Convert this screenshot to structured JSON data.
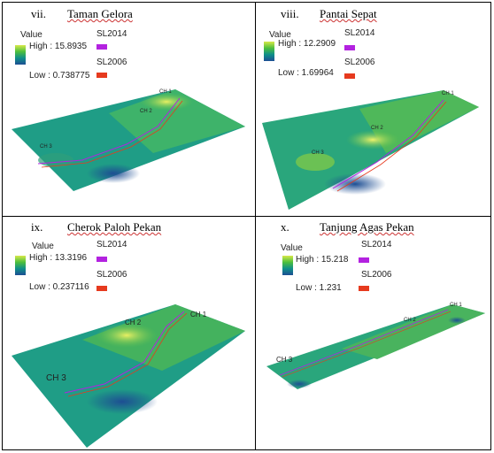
{
  "panels": [
    {
      "numeral": "vii.",
      "title": "Taman Gelora",
      "legend": {
        "value_label": "Value",
        "high": "High : 15.8935",
        "low": "Low : 0.738775",
        "sl2014": "SL2014",
        "sl2006": "SL2006"
      },
      "channels": [
        "CH 1",
        "CH 2",
        "CH 3"
      ]
    },
    {
      "numeral": "viii.",
      "title": "Pantai Sepat",
      "legend": {
        "value_label": "Value",
        "high": "High : 12.2909",
        "low": "Low : 1.69964",
        "sl2014": "SL2014",
        "sl2006": "SL2006"
      },
      "channels": [
        "CH 1",
        "CH 2",
        "CH 3"
      ]
    },
    {
      "numeral": "ix.",
      "title": "Cherok Paloh Pekan",
      "legend": {
        "value_label": "Value",
        "high": "High : 13.3196",
        "low": "Low : 0.237116",
        "sl2014": "SL2014",
        "sl2006": "SL2006"
      },
      "channels": [
        "CH 1",
        "CH 2",
        "CH 3"
      ]
    },
    {
      "numeral": "x.",
      "title": "Tanjung Agas Pekan",
      "legend": {
        "value_label": "Value",
        "high": "High : 15.218",
        "low": "Low : 1.231",
        "sl2014": "SL2014",
        "sl2006": "SL2006"
      },
      "channels": [
        "CH 1",
        "CH 2",
        "CH 3"
      ]
    }
  ],
  "colors": {
    "sl2014": "#b322e0",
    "sl2006": "#e63a1e",
    "high": "#d7e94a",
    "low": "#1d4e93"
  }
}
